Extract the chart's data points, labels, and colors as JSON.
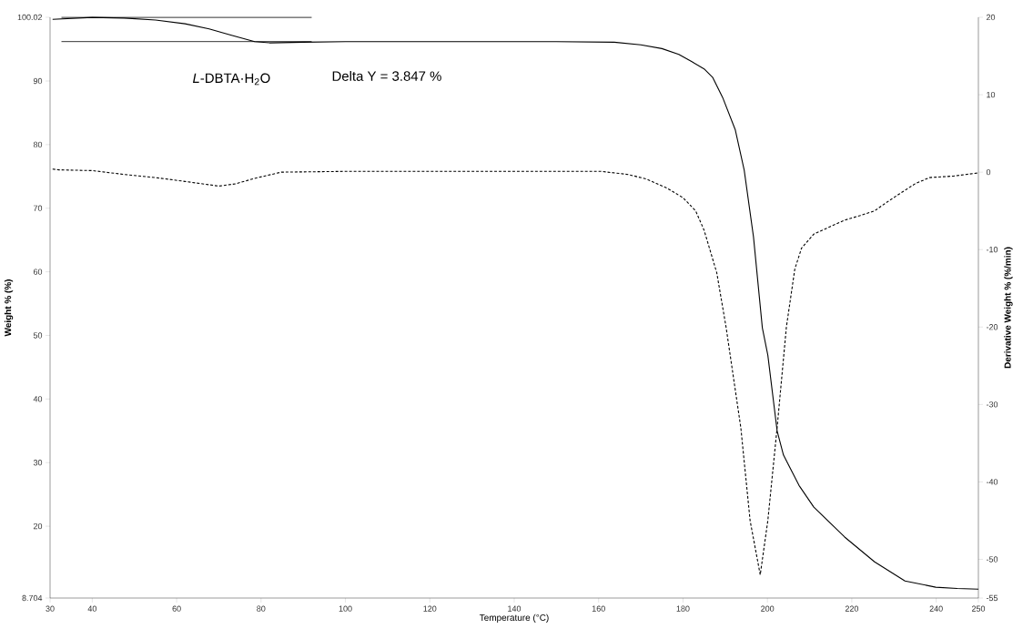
{
  "chart_data": {
    "type": "line",
    "xlabel": "Temperature (°C)",
    "ylabel": "Weight % (%)",
    "y2label": "Derivative Weight % (%/min)",
    "annotations": [
      "*L*-DBTA·H$_{2}$O",
      "Delta Y = 3.847 %"
    ],
    "xlim": [
      30,
      250
    ],
    "xticks": [
      30,
      40,
      60,
      80,
      100,
      120,
      140,
      160,
      180,
      200,
      220,
      240,
      250
    ],
    "ylim": [
      8.704,
      100.02
    ],
    "yticks": [
      8.704,
      20,
      30,
      40,
      50,
      60,
      70,
      80,
      90,
      100.02
    ],
    "y2lim": [
      -55,
      20
    ],
    "y2ticks": [
      -55,
      -50,
      -40,
      -30,
      -20,
      -10,
      0,
      10,
      20
    ],
    "marker": "none",
    "series": [
      {
        "color": "#000000",
        "line_style": "solid",
        "x": [
          30.6,
          40,
          47.6,
          55,
          62,
          67.7,
          73,
          78.5,
          82,
          90,
          100,
          120,
          139,
          150,
          163.7,
          170,
          175,
          179,
          182.2,
          185,
          187,
          189.4,
          192.4,
          194.5,
          196.7,
          198.8,
          200.1,
          202.3,
          203.8,
          207.5,
          211,
          218.3,
          225.4,
          232.6,
          239.9,
          245,
          250
        ],
        "values": [
          99.7,
          100,
          99.9,
          99.6,
          99,
          98.2,
          97.2,
          96.2,
          96.0,
          96.1,
          96.2,
          96.2,
          96.2,
          96.2,
          96.1,
          95.7,
          95.1,
          94.2,
          93,
          91.9,
          90.6,
          87.4,
          82.3,
          76.0,
          65.5,
          51.2,
          46.9,
          35.0,
          31.2,
          26.4,
          23.0,
          18.3,
          14.4,
          11.4,
          10.4,
          10.2,
          10.1
        ]
      },
      {
        "color": "#000000",
        "line_style": "dashed",
        "axis": "y2",
        "x": [
          30.6,
          32,
          40,
          47.6,
          55,
          62,
          70,
          74,
          78.5,
          84.8,
          100,
          120,
          140,
          160.6,
          167,
          171.4,
          176,
          180,
          183,
          185,
          188,
          190.2,
          193.7,
          195.9,
          198.3,
          200.1,
          202.3,
          204.5,
          205.3,
          206.5,
          208.1,
          211,
          215,
          218.3,
          222,
          225.4,
          228,
          231.3,
          235,
          238.4,
          244.2,
          250
        ],
        "values": [
          0.4,
          0.3,
          0.2,
          -0.3,
          -0.7,
          -1.2,
          -1.8,
          -1.5,
          -0.8,
          0,
          0.1,
          0.1,
          0.1,
          0.1,
          -0.3,
          -0.9,
          -2,
          -3.3,
          -5,
          -7.5,
          -13,
          -20,
          -33,
          -45,
          -52,
          -45,
          -33,
          -20,
          -17,
          -12.5,
          -9.8,
          -8,
          -7,
          -6.2,
          -5.6,
          -5.0,
          -4,
          -2.8,
          -1.5,
          -0.7,
          -0.5,
          -0.1
        ]
      },
      {
        "color": "#000000",
        "line_style": "solid",
        "x": [
          32.7,
          92
        ],
        "values": [
          100,
          100
        ]
      },
      {
        "color": "#000000",
        "line_style": "solid",
        "x": [
          32.7,
          92
        ],
        "values": [
          96.2,
          96.2
        ]
      }
    ]
  }
}
